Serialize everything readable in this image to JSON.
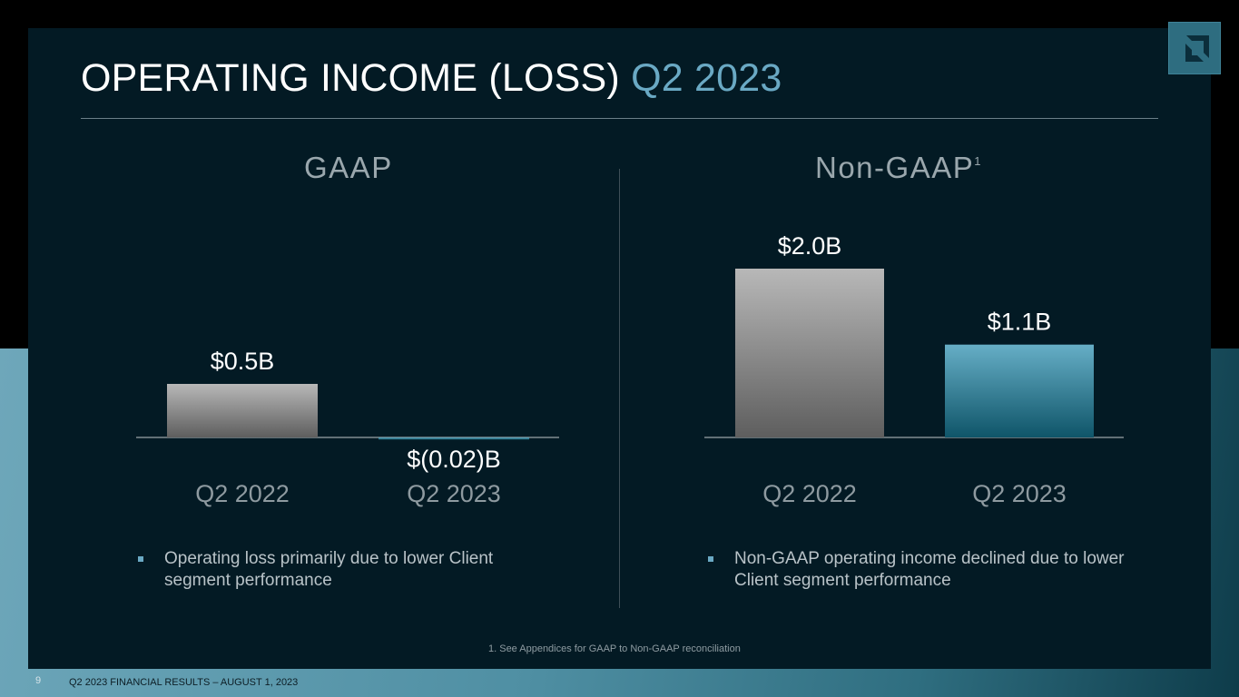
{
  "slide": {
    "title_main": "OPERATING INCOME (LOSS)",
    "title_accent": "Q2 2023",
    "page_number": "9",
    "footer": "Q2 2023 FINANCIAL RESULTS – AUGUST 1, 2023",
    "footnote": "1. See Appendices for GAAP to Non-GAAP reconciliation",
    "logo_icon": "amd-arrow-logo-icon"
  },
  "sections": {
    "gaap": {
      "title": "GAAP",
      "bullet": "Operating loss primarily due to lower Client segment performance"
    },
    "nongaap": {
      "title": "Non-GAAP",
      "superscript": "1",
      "bullet": "Non-GAAP operating income declined due to lower Client segment performance"
    }
  },
  "colors": {
    "prior_period_bar": "#8c8c8c",
    "current_period_bar": "#5fa6be",
    "accent": "#6aa9c4"
  },
  "chart_data": [
    {
      "type": "bar",
      "title": "GAAP",
      "categories": [
        "Q2 2022",
        "Q2 2023"
      ],
      "values": [
        0.5,
        -0.02
      ],
      "data_labels": [
        "$0.5B",
        "$(0.02)B"
      ],
      "unit": "$B"
    },
    {
      "type": "bar",
      "title": "Non-GAAP",
      "categories": [
        "Q2 2022",
        "Q2 2023"
      ],
      "values": [
        2.0,
        1.1
      ],
      "data_labels": [
        "$2.0B",
        "$1.1B"
      ],
      "unit": "$B"
    }
  ]
}
